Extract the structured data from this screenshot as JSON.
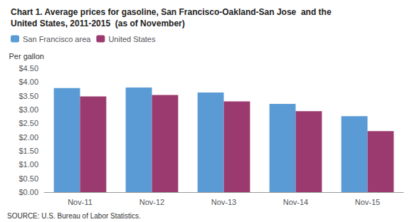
{
  "chart_data": {
    "type": "bar",
    "title": "Chart 1. Average prices for gasoline, San Francisco-Oakland-San Jose  and the\nUnited States, 2011-2015  (as of November)",
    "ylabel": "Per gallon",
    "annotations": [
      "SOURCE: U.S. Bureau of Labor Statistics."
    ],
    "categories": [
      "Nov-11",
      "Nov-12",
      "Nov-13",
      "Nov-14",
      "Nov-15"
    ],
    "series": [
      {
        "name": "San Francisco area",
        "color": "#5B9BD5",
        "values": [
          3.78,
          3.8,
          3.62,
          3.21,
          2.76
        ]
      },
      {
        "name": "United States",
        "color": "#9B3A6E",
        "values": [
          3.48,
          3.53,
          3.3,
          2.94,
          2.22
        ]
      }
    ],
    "ylim": [
      0.0,
      4.5
    ],
    "yticks": [
      {
        "value": 0.0,
        "label": "$0.00"
      },
      {
        "value": 0.5,
        "label": "$0.50"
      },
      {
        "value": 1.0,
        "label": "$1.00"
      },
      {
        "value": 1.5,
        "label": "$1.50"
      },
      {
        "value": 2.0,
        "label": "$2.00"
      },
      {
        "value": 2.5,
        "label": "$2.50"
      },
      {
        "value": 3.0,
        "label": "$3.00"
      },
      {
        "value": 3.5,
        "label": "$3.50"
      },
      {
        "value": 4.0,
        "label": "$4.00"
      },
      {
        "value": 4.5,
        "label": "$4.50"
      }
    ],
    "grid": false,
    "legend": "upper left"
  }
}
